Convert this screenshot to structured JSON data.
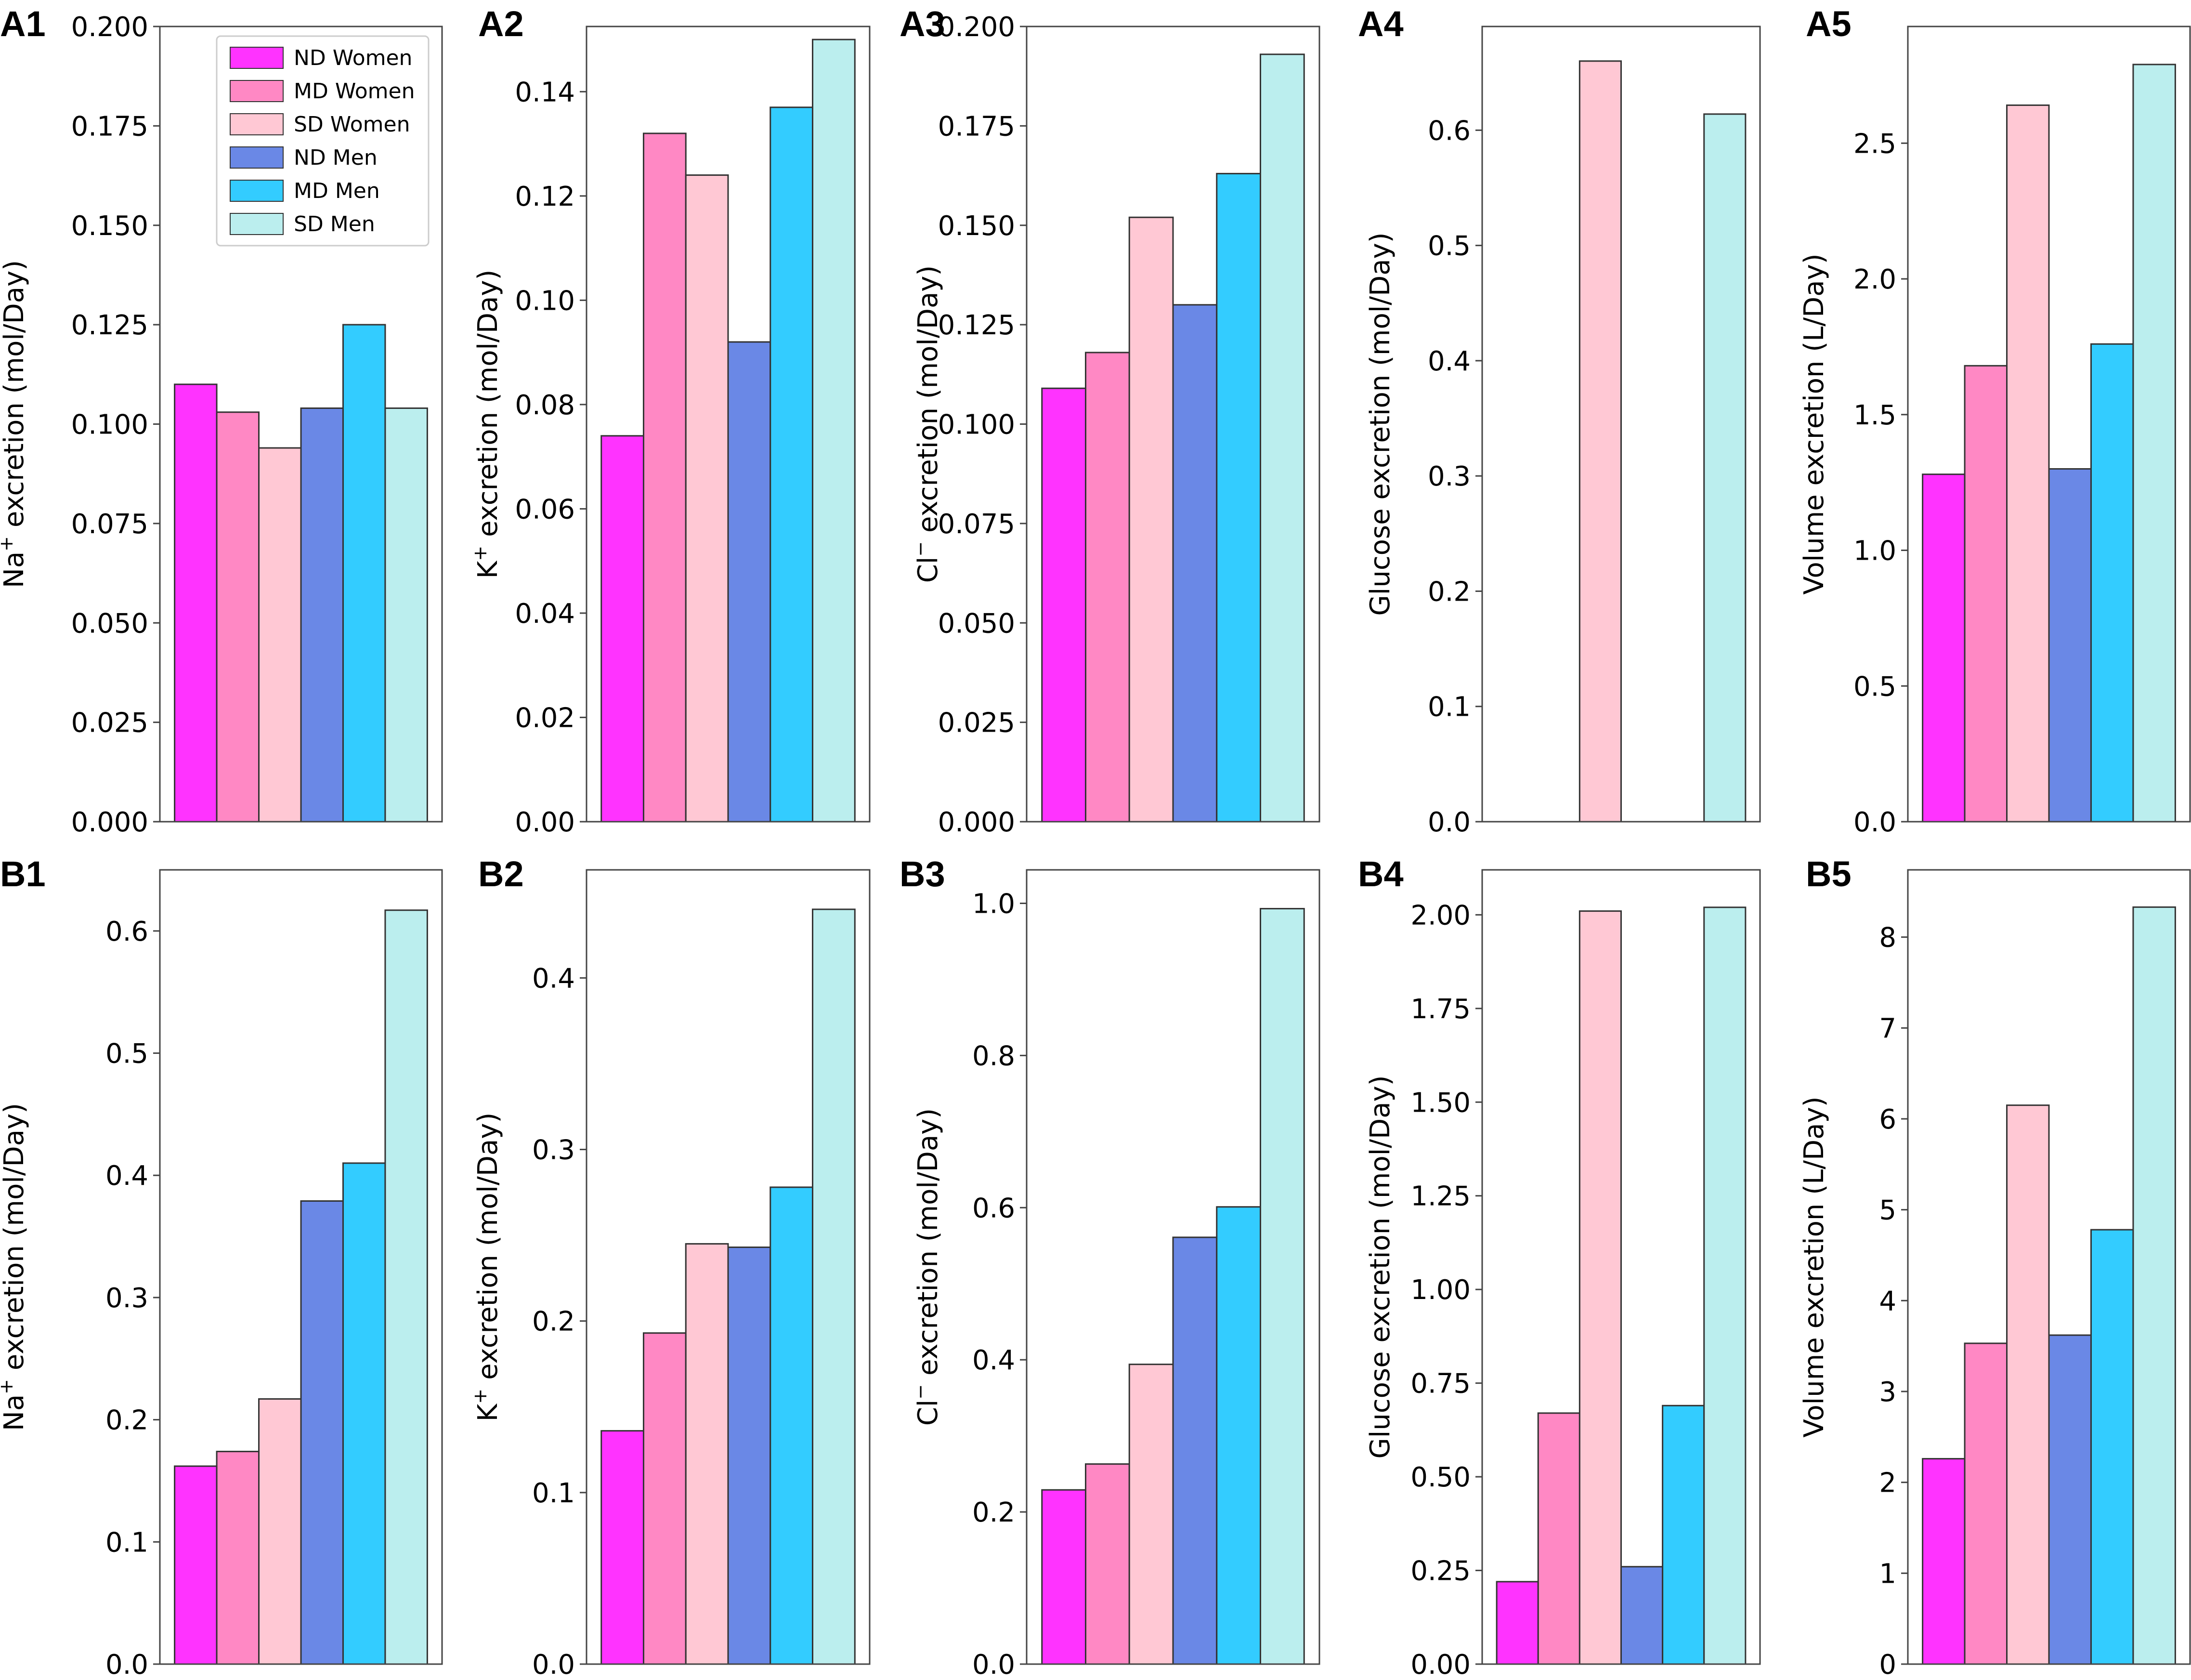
{
  "colors": {
    "ND Women": "#ff33ff",
    "MD Women": "#ff88c4",
    "SD Women": "#ffc8d4",
    "ND Men": "#6a88e6",
    "MD Men": "#33ccff",
    "SD Men": "#bbeeee"
  },
  "legend": [
    "ND Women",
    "MD Women",
    "SD Women",
    "ND Men",
    "MD Men",
    "SD Men"
  ],
  "chart_data": [
    {
      "panel": "A1",
      "type": "bar",
      "ylabel_main": "Na",
      "ylabel_sup": "+",
      "ylabel_rest": " excretion (mol/Day)",
      "categories": [
        "ND Women",
        "MD Women",
        "SD Women",
        "ND Men",
        "MD Men",
        "SD Men"
      ],
      "values": [
        0.11,
        0.103,
        0.094,
        0.104,
        0.125,
        0.104
      ],
      "ylim": [
        0,
        0.2
      ],
      "yticks": [
        0,
        0.025,
        0.05,
        0.075,
        0.1,
        0.125,
        0.15,
        0.175,
        0.2
      ],
      "ytick_labels": [
        "0.000",
        "0.025",
        "0.050",
        "0.075",
        "0.100",
        "0.125",
        "0.150",
        "0.175",
        "0.200"
      ],
      "legend": true
    },
    {
      "panel": "A2",
      "type": "bar",
      "ylabel_main": "K",
      "ylabel_sup": "+",
      "ylabel_rest": " excretion (mol/Day)",
      "categories": [
        "ND Women",
        "MD Women",
        "SD Women",
        "ND Men",
        "MD Men",
        "SD Men"
      ],
      "values": [
        0.074,
        0.132,
        0.124,
        0.092,
        0.137,
        0.15
      ],
      "ylim": [
        0,
        0.1525
      ],
      "yticks": [
        0,
        0.02,
        0.04,
        0.06,
        0.08,
        0.1,
        0.12,
        0.14
      ],
      "ytick_labels": [
        "0.00",
        "0.02",
        "0.04",
        "0.06",
        "0.08",
        "0.10",
        "0.12",
        "0.14"
      ]
    },
    {
      "panel": "A3",
      "type": "bar",
      "ylabel_main": "Cl",
      "ylabel_sup": "−",
      "ylabel_rest": " excretion (mol/Day)",
      "categories": [
        "ND Women",
        "MD Women",
        "SD Women",
        "ND Men",
        "MD Men",
        "SD Men"
      ],
      "values": [
        0.109,
        0.118,
        0.152,
        0.13,
        0.163,
        0.193
      ],
      "ylim": [
        0,
        0.2
      ],
      "yticks": [
        0,
        0.025,
        0.05,
        0.075,
        0.1,
        0.125,
        0.15,
        0.175,
        0.2
      ],
      "ytick_labels": [
        "0.000",
        "0.025",
        "0.050",
        "0.075",
        "0.100",
        "0.125",
        "0.150",
        "0.175",
        "0.200"
      ]
    },
    {
      "panel": "A4",
      "type": "bar",
      "ylabel_main": "Glucose excretion (mol/Day)",
      "ylabel_sup": "",
      "ylabel_rest": "",
      "categories": [
        "ND Women",
        "MD Women",
        "SD Women",
        "ND Men",
        "MD Men",
        "SD Men"
      ],
      "values": [
        0.0,
        0.0,
        0.66,
        0.0,
        0.0,
        0.614
      ],
      "ylim": [
        0,
        0.69
      ],
      "yticks": [
        0,
        0.1,
        0.2,
        0.3,
        0.4,
        0.5,
        0.6
      ],
      "ytick_labels": [
        "0.0",
        "0.1",
        "0.2",
        "0.3",
        "0.4",
        "0.5",
        "0.6"
      ]
    },
    {
      "panel": "A5",
      "type": "bar",
      "ylabel_main": "Volume excretion (L/Day)",
      "ylabel_sup": "",
      "ylabel_rest": "",
      "categories": [
        "ND Women",
        "MD Women",
        "SD Women",
        "ND Men",
        "MD Men",
        "SD Men"
      ],
      "values": [
        1.28,
        1.68,
        2.64,
        1.3,
        1.76,
        2.79
      ],
      "ylim": [
        0,
        2.93
      ],
      "yticks": [
        0,
        0.5,
        1.0,
        1.5,
        2.0,
        2.5
      ],
      "ytick_labels": [
        "0.0",
        "0.5",
        "1.0",
        "1.5",
        "2.0",
        "2.5"
      ]
    },
    {
      "panel": "B1",
      "type": "bar",
      "ylabel_main": "Na",
      "ylabel_sup": "+",
      "ylabel_rest": " excretion (mol/Day)",
      "categories": [
        "ND Women",
        "MD Women",
        "SD Women",
        "ND Men",
        "MD Men",
        "SD Men"
      ],
      "values": [
        0.162,
        0.174,
        0.217,
        0.379,
        0.41,
        0.617
      ],
      "ylim": [
        0,
        0.65
      ],
      "yticks": [
        0,
        0.1,
        0.2,
        0.3,
        0.4,
        0.5,
        0.6
      ],
      "ytick_labels": [
        "0.0",
        "0.1",
        "0.2",
        "0.3",
        "0.4",
        "0.5",
        "0.6"
      ]
    },
    {
      "panel": "B2",
      "type": "bar",
      "ylabel_main": "K",
      "ylabel_sup": "+",
      "ylabel_rest": " excretion (mol/Day)",
      "categories": [
        "ND Women",
        "MD Women",
        "SD Women",
        "ND Men",
        "MD Men",
        "SD Men"
      ],
      "values": [
        0.136,
        0.193,
        0.245,
        0.243,
        0.278,
        0.44
      ],
      "ylim": [
        0,
        0.463
      ],
      "yticks": [
        0,
        0.1,
        0.2,
        0.3,
        0.4
      ],
      "ytick_labels": [
        "0.0",
        "0.1",
        "0.2",
        "0.3",
        "0.4"
      ]
    },
    {
      "panel": "B3",
      "type": "bar",
      "ylabel_main": "Cl",
      "ylabel_sup": "−",
      "ylabel_rest": " excretion (mol/Day)",
      "categories": [
        "ND Women",
        "MD Women",
        "SD Women",
        "ND Men",
        "MD Men",
        "SD Men"
      ],
      "values": [
        0.229,
        0.263,
        0.394,
        0.561,
        0.601,
        0.993
      ],
      "ylim": [
        0,
        1.044
      ],
      "yticks": [
        0,
        0.2,
        0.4,
        0.6,
        0.8,
        1.0
      ],
      "ytick_labels": [
        "0.0",
        "0.2",
        "0.4",
        "0.6",
        "0.8",
        "1.0"
      ]
    },
    {
      "panel": "B4",
      "type": "bar",
      "ylabel_main": "Glucose excretion (mol/Day)",
      "ylabel_sup": "",
      "ylabel_rest": "",
      "categories": [
        "ND Women",
        "MD Women",
        "SD Women",
        "ND Men",
        "MD Men",
        "SD Men"
      ],
      "values": [
        0.22,
        0.67,
        2.01,
        0.26,
        0.69,
        2.02
      ],
      "ylim": [
        0,
        2.12
      ],
      "yticks": [
        0,
        0.25,
        0.5,
        0.75,
        1.0,
        1.25,
        1.5,
        1.75,
        2.0
      ],
      "ytick_labels": [
        "0.00",
        "0.25",
        "0.50",
        "0.75",
        "1.00",
        "1.25",
        "1.50",
        "1.75",
        "2.00"
      ]
    },
    {
      "panel": "B5",
      "type": "bar",
      "ylabel_main": "Volume excretion (L/Day)",
      "ylabel_sup": "",
      "ylabel_rest": "",
      "categories": [
        "ND Women",
        "MD Women",
        "SD Women",
        "ND Men",
        "MD Men",
        "SD Men"
      ],
      "values": [
        2.26,
        3.53,
        6.15,
        3.62,
        4.78,
        8.33
      ],
      "ylim": [
        0,
        8.74
      ],
      "yticks": [
        0,
        1,
        2,
        3,
        4,
        5,
        6,
        7,
        8
      ],
      "ytick_labels": [
        "0",
        "1",
        "2",
        "3",
        "4",
        "5",
        "6",
        "7",
        "8"
      ]
    }
  ]
}
